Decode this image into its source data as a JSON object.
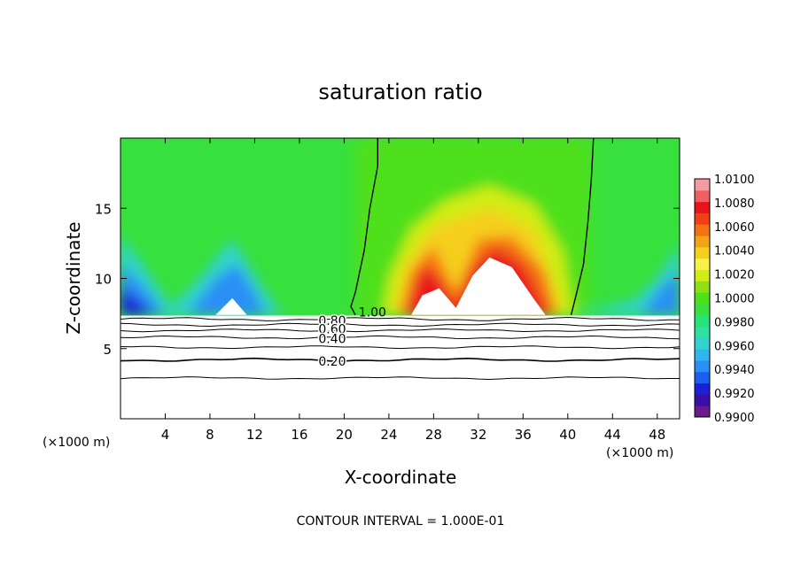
{
  "chart_data": {
    "type": "heatmap",
    "title": "saturation ratio",
    "xlabel": "X-coordinate",
    "ylabel": "Z-coordinate",
    "x_unit_left": "(×1000 m)",
    "x_unit_right": "(×1000 m)",
    "xlim": [
      0,
      50
    ],
    "ylim": [
      0,
      20
    ],
    "x_ticks": [
      4,
      8,
      12,
      16,
      20,
      24,
      28,
      32,
      36,
      40,
      44,
      48
    ],
    "y_ticks": [
      5,
      10,
      15
    ],
    "colorbar": {
      "levels": [
        0.99,
        0.991,
        0.992,
        0.993,
        0.994,
        0.995,
        0.996,
        0.997,
        0.998,
        0.999,
        1.0,
        1.001,
        1.002,
        1.003,
        1.004,
        1.005,
        1.006,
        1.007,
        1.008,
        1.009,
        1.01
      ],
      "tick_labels": [
        "0.9900",
        "0.9920",
        "0.9940",
        "0.9960",
        "0.9980",
        "1.0000",
        "1.0020",
        "1.0040",
        "1.0060",
        "1.0080",
        "1.0100"
      ],
      "colors": [
        "#6a1a8a",
        "#3a0fa8",
        "#1a1fd8",
        "#1a5ff0",
        "#2a8ff5",
        "#2fb5f0",
        "#33d2cf",
        "#2ee0a2",
        "#28e27a",
        "#37e03c",
        "#4fe01c",
        "#8ce014",
        "#d2ec16",
        "#f7f24a",
        "#f5cf1a",
        "#f4a316",
        "#f57214",
        "#f24016",
        "#e8141c",
        "#f06060",
        "#f59aa0"
      ]
    },
    "contour_labels": [
      {
        "text": "1.00",
        "x": 21.3,
        "z": 7.6
      },
      {
        "text": "0.80",
        "x": 17.7,
        "z": 7.0
      },
      {
        "text": "0.60",
        "x": 17.7,
        "z": 6.4
      },
      {
        "text": "0.40",
        "x": 17.7,
        "z": 5.7
      },
      {
        "text": "0.20",
        "x": 17.7,
        "z": 4.1
      }
    ],
    "contour_levels_below": [
      0.2,
      0.4,
      0.6,
      0.8
    ],
    "annotation": "CONTOUR INTERVAL = 1.000E-01"
  }
}
